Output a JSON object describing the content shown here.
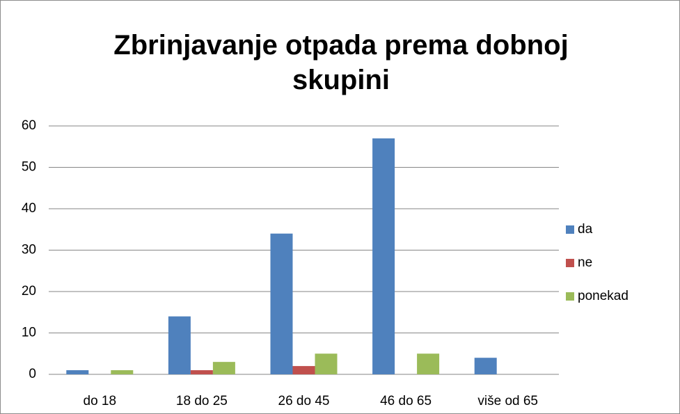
{
  "chart_data": {
    "type": "bar",
    "title": "Zbrinjavanje otpada prema dobnoj skupini",
    "categories": [
      "do 18",
      "18 do 25",
      "26 do 45",
      "46 do 65",
      "više od 65"
    ],
    "series": [
      {
        "name": "da",
        "color": "#4f81bd",
        "values": [
          1,
          14,
          34,
          57,
          4
        ]
      },
      {
        "name": "ne",
        "color": "#c0504d",
        "values": [
          0,
          1,
          2,
          0,
          0
        ]
      },
      {
        "name": "ponekad",
        "color": "#9bbb59",
        "values": [
          1,
          3,
          5,
          5,
          0
        ]
      }
    ],
    "ylim": [
      0,
      60
    ],
    "yticks": [
      0,
      10,
      20,
      30,
      40,
      50,
      60
    ],
    "grid": true,
    "legend": "right"
  }
}
